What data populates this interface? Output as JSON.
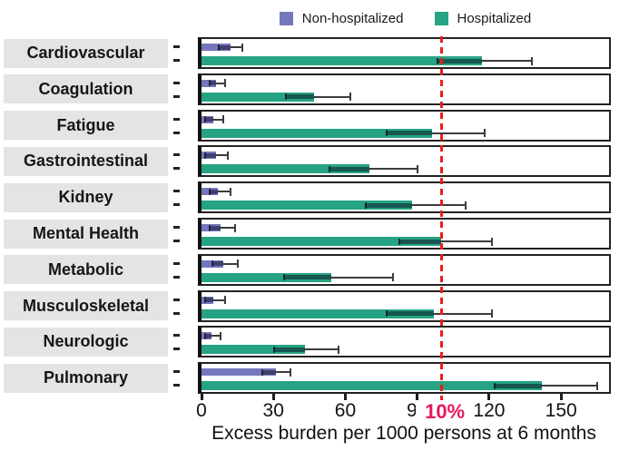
{
  "chart_data": {
    "type": "bar",
    "orientation": "horizontal",
    "title": "",
    "xlabel": "Excess burden per 1000 persons at 6 months",
    "ylabel": "",
    "x_ticks": [
      0,
      30,
      60,
      90,
      120,
      150
    ],
    "xlim": [
      0,
      170
    ],
    "grid": false,
    "legend_position": "top-center",
    "reference_line": {
      "value": 100,
      "label": "10%",
      "style": "dashed",
      "color": "#ee1b1b",
      "label_color": "#e8175a"
    },
    "categories": [
      "Cardiovascular",
      "Coagulation",
      "Fatigue",
      "Gastrointestinal",
      "Kidney",
      "Mental Health",
      "Metabolic",
      "Musculoskeletal",
      "Neurologic",
      "Pulmonary"
    ],
    "series": [
      {
        "name": "Non-hospitalized",
        "color": "#7577bd",
        "values": [
          12,
          6,
          5,
          6,
          7,
          8,
          9,
          5,
          4,
          31
        ],
        "ci_low": [
          7,
          3,
          1,
          1,
          3,
          3,
          4,
          1,
          1,
          25
        ],
        "ci_high": [
          17,
          10,
          9,
          11,
          12,
          14,
          15,
          10,
          8,
          37
        ]
      },
      {
        "name": "Hospitalized",
        "color": "#26a383",
        "values": [
          117,
          47,
          96,
          70,
          88,
          100,
          54,
          97,
          43,
          142
        ],
        "ci_low": [
          98,
          35,
          77,
          53,
          68,
          82,
          34,
          77,
          30,
          122
        ],
        "ci_high": [
          138,
          62,
          118,
          90,
          110,
          121,
          80,
          121,
          57,
          165
        ]
      }
    ]
  }
}
